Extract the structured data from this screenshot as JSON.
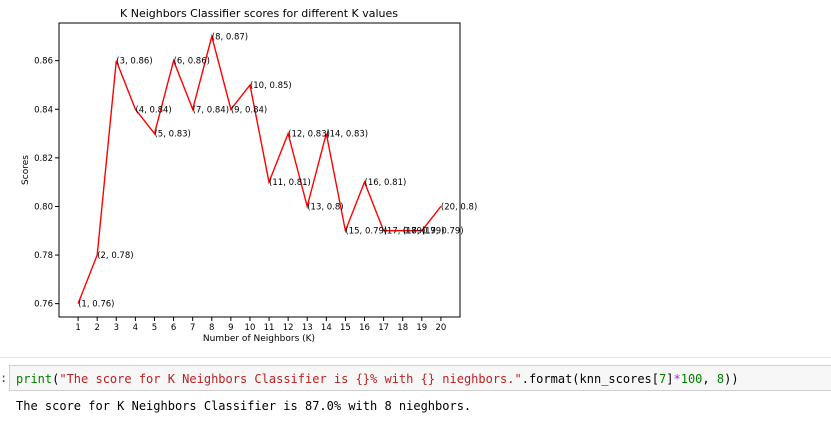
{
  "chart_data": {
    "type": "line",
    "title": "K Neighbors Classifier scores for different K values",
    "xlabel": "Number of Neighbors (K)",
    "ylabel": "Scores",
    "x": [
      1,
      2,
      3,
      4,
      5,
      6,
      7,
      8,
      9,
      10,
      11,
      12,
      13,
      14,
      15,
      16,
      17,
      18,
      19,
      20
    ],
    "y": [
      0.76,
      0.78,
      0.86,
      0.84,
      0.83,
      0.86,
      0.84,
      0.87,
      0.84,
      0.85,
      0.81,
      0.83,
      0.8,
      0.83,
      0.79,
      0.81,
      0.79,
      0.79,
      0.79,
      0.8
    ],
    "point_labels": [
      "(1, 0.76)",
      "(2, 0.78)",
      "(3, 0.86)",
      "(4, 0.84)",
      "(5, 0.83)",
      "(6, 0.86)",
      "(7, 0.84)",
      "(8, 0.87)",
      "(9, 0.84)",
      "(10, 0.85)",
      "(11, 0.81)",
      "(12, 0.83)",
      "(13, 0.8)",
      "(14, 0.83)",
      "(15, 0.79)",
      "(16, 0.81)",
      "(17, 0.79)",
      "(18, 0.79)",
      "(19, 0.79)",
      "(20, 0.8)"
    ],
    "xticks": [
      "1",
      "2",
      "3",
      "4",
      "5",
      "6",
      "7",
      "8",
      "9",
      "10",
      "11",
      "12",
      "13",
      "14",
      "15",
      "16",
      "17",
      "18",
      "19",
      "20"
    ],
    "yticks": [
      "0.76",
      "0.78",
      "0.80",
      "0.82",
      "0.84",
      "0.86"
    ],
    "ytick_values": [
      0.76,
      0.78,
      0.8,
      0.82,
      0.84,
      0.86
    ],
    "xlim": [
      0.0,
      21.0
    ],
    "ylim": [
      0.7545,
      0.8755
    ],
    "grid": false,
    "line_color": "#ff0000"
  },
  "cell": {
    "prompt": ":",
    "code_builtin": "print",
    "code_open": "(",
    "code_string": "\"The score for K Neighbors Classifier is {}% with {} nieghbors.\"",
    "code_method": ".format(knn_scores[",
    "code_index": "7",
    "code_mid": "]",
    "code_op": "*",
    "code_num": "100",
    "code_sep": ", ",
    "code_arg": "8",
    "code_close": "))",
    "output_text": "The score for K Neighbors Classifier is 87.0% with 8 nieghbors."
  }
}
